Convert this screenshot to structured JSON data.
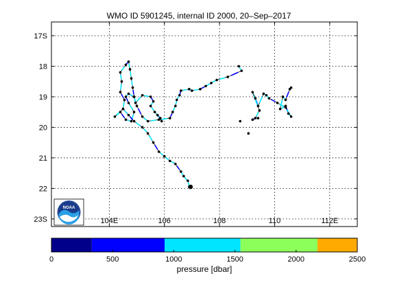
{
  "chart_data": {
    "type": "scatter",
    "title": "WMO ID 5901245, internal ID 2000, 20–Sep–2017",
    "x_ticks": [
      {
        "value": 104,
        "label": "104E"
      },
      {
        "value": 106,
        "label": "106"
      },
      {
        "value": 108,
        "label": "108"
      },
      {
        "value": 110,
        "label": "110"
      },
      {
        "value": 112,
        "label": "112E"
      }
    ],
    "y_ticks": [
      {
        "value": -17,
        "label": "17S"
      },
      {
        "value": -18,
        "label": "18"
      },
      {
        "value": -19,
        "label": "19"
      },
      {
        "value": -20,
        "label": "20"
      },
      {
        "value": -21,
        "label": "21"
      },
      {
        "value": -22,
        "label": "22"
      },
      {
        "value": -23,
        "label": "23S"
      }
    ],
    "xlim": [
      101.9,
      113.0
    ],
    "ylim": [
      -23.25,
      -16.55
    ],
    "grid": true,
    "trajectory": [
      [
        110.6,
        -18.7
      ],
      [
        110.55,
        -18.75
      ],
      [
        110.4,
        -19.1
      ],
      [
        110.3,
        -19.0
      ],
      [
        110.2,
        -19.4
      ],
      [
        110.4,
        -19.3
      ],
      [
        110.5,
        -19.55
      ],
      [
        110.6,
        -19.65
      ],
      [
        110.4,
        -19.35
      ],
      [
        110.1,
        -19.2
      ],
      [
        109.8,
        -19.05
      ],
      [
        109.7,
        -18.95
      ],
      [
        109.6,
        -18.9
      ],
      [
        109.4,
        -19.3
      ],
      [
        109.3,
        -19.05
      ],
      [
        109.2,
        -18.85
      ],
      [
        109.45,
        -19.45
      ],
      [
        109.3,
        -19.7
      ],
      [
        109.2,
        -19.75
      ]
    ],
    "trajectory2": [
      [
        108.7,
        -18.0
      ],
      [
        108.8,
        -18.15
      ],
      [
        108.3,
        -18.35
      ],
      [
        107.9,
        -18.45
      ],
      [
        107.7,
        -18.55
      ],
      [
        107.5,
        -18.65
      ],
      [
        107.3,
        -18.75
      ],
      [
        107.0,
        -18.8
      ],
      [
        106.9,
        -18.75
      ],
      [
        106.6,
        -18.8
      ],
      [
        106.55,
        -18.95
      ],
      [
        106.45,
        -19.1
      ],
      [
        106.4,
        -19.3
      ],
      [
        106.3,
        -19.5
      ],
      [
        106.2,
        -19.7
      ],
      [
        105.8,
        -19.75
      ],
      [
        105.4,
        -19.8
      ],
      [
        105.2,
        -19.65
      ],
      [
        105.0,
        -19.3
      ],
      [
        104.9,
        -19.0
      ],
      [
        104.7,
        -18.9
      ],
      [
        104.6,
        -19.0
      ],
      [
        104.7,
        -19.2
      ],
      [
        104.9,
        -19.5
      ],
      [
        104.8,
        -19.8
      ],
      [
        104.6,
        -19.75
      ],
      [
        104.4,
        -19.5
      ],
      [
        104.2,
        -19.65
      ],
      [
        104.5,
        -19.4
      ],
      [
        104.55,
        -19.1
      ],
      [
        104.4,
        -18.85
      ],
      [
        104.45,
        -18.5
      ],
      [
        104.4,
        -18.2
      ],
      [
        104.6,
        -17.95
      ],
      [
        104.7,
        -17.85
      ],
      [
        104.75,
        -18.1
      ],
      [
        104.8,
        -18.4
      ],
      [
        104.85,
        -18.7
      ],
      [
        104.9,
        -19.0
      ],
      [
        104.95,
        -19.2
      ],
      [
        105.2,
        -18.95
      ],
      [
        105.5,
        -19.0
      ],
      [
        105.6,
        -19.15
      ],
      [
        105.5,
        -19.3
      ],
      [
        105.65,
        -19.5
      ],
      [
        105.85,
        -19.7
      ],
      [
        105.75,
        -19.6
      ],
      [
        105.9,
        -19.8
      ]
    ],
    "trajectory3": [
      [
        104.5,
        -19.4
      ],
      [
        104.7,
        -19.6
      ],
      [
        104.9,
        -19.8
      ],
      [
        105.2,
        -20.0
      ],
      [
        105.4,
        -20.2
      ],
      [
        105.6,
        -20.5
      ],
      [
        105.8,
        -20.8
      ],
      [
        106.0,
        -20.95
      ],
      [
        106.2,
        -21.1
      ],
      [
        106.4,
        -21.2
      ],
      [
        106.6,
        -21.45
      ],
      [
        106.7,
        -21.6
      ],
      [
        106.85,
        -21.75
      ],
      [
        106.9,
        -21.95
      ]
    ],
    "outliers": [
      [
        108.75,
        -19.8
      ],
      [
        109.05,
        -20.2
      ],
      [
        109.4,
        -19.7
      ]
    ],
    "start_point": [
      106.95,
      -21.95
    ],
    "colorbar": {
      "label": "pressure [dbar]",
      "ticks": [
        0,
        500,
        1000,
        1500,
        2000,
        2500
      ],
      "range": [
        0,
        2500
      ],
      "bands": [
        {
          "from": 0,
          "to": 330,
          "color": "#00008b"
        },
        {
          "from": 330,
          "to": 925,
          "color": "#0000ff"
        },
        {
          "from": 925,
          "to": 1545,
          "color": "#00e5ff"
        },
        {
          "from": 1545,
          "to": 2175,
          "color": "#8cff5a"
        },
        {
          "from": 2175,
          "to": 2500,
          "color": "#ffaa00"
        }
      ]
    },
    "logo": {
      "text": "NOAA"
    }
  }
}
